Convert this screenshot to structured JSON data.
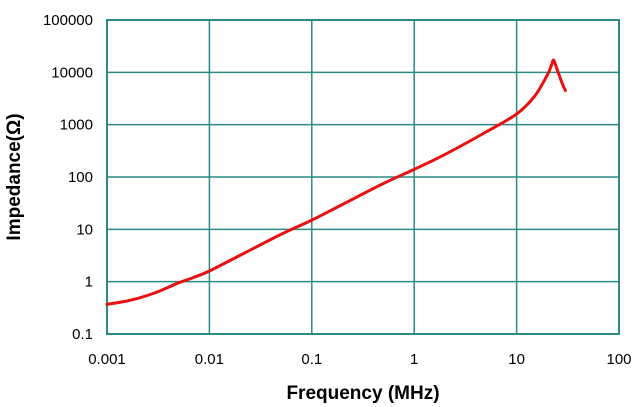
{
  "chart_data": {
    "type": "line",
    "title": "",
    "xlabel": "Frequency (MHz)",
    "ylabel": "Impedance(Ω)",
    "x_scale": "log",
    "y_scale": "log",
    "xlim": [
      0.001,
      100
    ],
    "ylim": [
      0.1,
      100000
    ],
    "x_ticks": [
      "0.001",
      "0.01",
      "0.1",
      "1",
      "10",
      "100"
    ],
    "y_ticks": [
      "0.1",
      "1",
      "10",
      "100",
      "1000",
      "10000",
      "100000"
    ],
    "grid": true,
    "legend": "none",
    "colors": {
      "line": "#e81010",
      "grid": "#2a8a86",
      "frame": "#2a8a86"
    },
    "series": [
      {
        "x": [
          0.001,
          0.0015,
          0.002,
          0.003,
          0.005,
          0.007,
          0.01,
          0.02,
          0.05,
          0.1,
          0.2,
          0.5,
          1,
          2,
          5,
          10,
          15,
          20,
          22,
          23,
          25,
          28,
          30
        ],
        "y": [
          0.37,
          0.42,
          0.48,
          0.62,
          0.95,
          1.2,
          1.6,
          3.2,
          8,
          15,
          30,
          75,
          140,
          270,
          720,
          1600,
          3500,
          9000,
          14000,
          17000,
          11000,
          6000,
          4500
        ]
      }
    ]
  }
}
